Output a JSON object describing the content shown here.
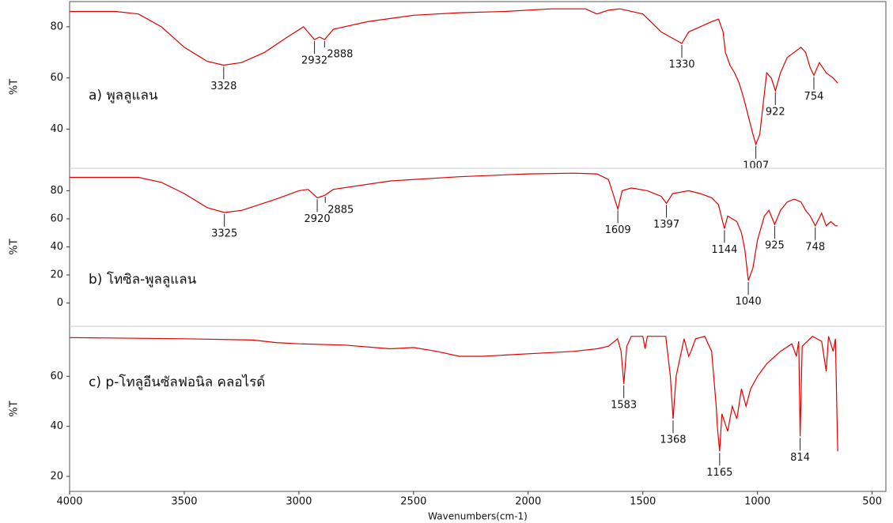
{
  "chart_data": [
    {
      "type": "line",
      "label": "a) พูลลูแลน",
      "ylabel": "%T",
      "color": "#e00000",
      "xlim": [
        4000,
        440
      ],
      "ylim": [
        25,
        88
      ],
      "yticks": [
        40,
        60,
        80
      ],
      "x": [
        4000,
        3800,
        3700,
        3600,
        3500,
        3400,
        3328,
        3250,
        3150,
        3050,
        2980,
        2932,
        2910,
        2888,
        2850,
        2700,
        2500,
        2300,
        2100,
        1900,
        1750,
        1700,
        1650,
        1600,
        1500,
        1420,
        1380,
        1330,
        1300,
        1250,
        1200,
        1170,
        1150,
        1140,
        1120,
        1100,
        1080,
        1060,
        1040,
        1020,
        1007,
        990,
        960,
        940,
        922,
        900,
        870,
        840,
        810,
        790,
        770,
        754,
        730,
        700,
        670,
        650
      ],
      "values": [
        86,
        86,
        85,
        80,
        72,
        66.5,
        65,
        66,
        70,
        76,
        80,
        75,
        76,
        75,
        79,
        82,
        84.5,
        85.5,
        86,
        87,
        87,
        85,
        86.5,
        87,
        85,
        78,
        76,
        73.5,
        78,
        80,
        82,
        83,
        78,
        70,
        65,
        62,
        58,
        52,
        45,
        38,
        34,
        38,
        62,
        60,
        55,
        62,
        68,
        70,
        72,
        70,
        64,
        61,
        66,
        62,
        60,
        58
      ],
      "peaks": [
        3328,
        2932,
        2888,
        1330,
        1007,
        922,
        754
      ]
    },
    {
      "type": "line",
      "label": "b) โทซิล-พูลลูแลน",
      "ylabel": "%T",
      "color": "#e00000",
      "xlim": [
        4000,
        440
      ],
      "ylim": [
        -16,
        96
      ],
      "yticks": [
        0,
        20,
        40,
        60,
        80
      ],
      "x": [
        4000,
        3700,
        3600,
        3500,
        3400,
        3325,
        3250,
        3100,
        3000,
        2960,
        2920,
        2900,
        2885,
        2850,
        2600,
        2300,
        2000,
        1800,
        1700,
        1650,
        1630,
        1609,
        1590,
        1550,
        1480,
        1420,
        1397,
        1370,
        1300,
        1250,
        1200,
        1170,
        1155,
        1144,
        1130,
        1110,
        1090,
        1070,
        1055,
        1040,
        1020,
        1000,
        970,
        950,
        925,
        900,
        870,
        840,
        810,
        790,
        770,
        748,
        720,
        700,
        680,
        660,
        650
      ],
      "values": [
        89.5,
        89.5,
        86,
        78,
        68,
        64.5,
        66,
        74,
        80,
        81,
        75,
        76,
        77,
        81,
        87,
        90,
        92,
        92.5,
        92,
        88,
        78,
        67,
        80,
        82,
        80,
        76,
        71,
        78,
        80,
        78,
        75,
        70,
        60,
        53,
        62,
        60,
        58,
        50,
        38,
        16,
        25,
        45,
        62,
        66,
        56,
        66,
        72,
        74,
        72,
        66,
        62,
        55,
        64,
        55,
        58,
        55,
        55
      ],
      "peaks": [
        3325,
        2920,
        2885,
        1609,
        1397,
        1144,
        1040,
        925,
        748
      ]
    },
    {
      "type": "line",
      "label": "c) p-โทลูอีนซัลฟอนิล คลอไรด์",
      "ylabel": "%T",
      "color": "#e00000",
      "xlabel": "Wavenumbers(cm-1)",
      "xlim": [
        4000,
        440
      ],
      "ylim": [
        14,
        80
      ],
      "yticks": [
        20,
        40,
        60
      ],
      "xticks": [
        4000,
        3500,
        3000,
        2500,
        2000,
        1500,
        1000,
        500
      ],
      "x": [
        4000,
        3500,
        3200,
        3100,
        3000,
        2800,
        2600,
        2500,
        2400,
        2300,
        2200,
        2100,
        2000,
        1900,
        1800,
        1700,
        1650,
        1610,
        1595,
        1583,
        1570,
        1550,
        1500,
        1490,
        1480,
        1400,
        1380,
        1368,
        1355,
        1320,
        1300,
        1290,
        1270,
        1230,
        1200,
        1180,
        1175,
        1165,
        1155,
        1130,
        1110,
        1090,
        1070,
        1050,
        1030,
        1000,
        960,
        900,
        850,
        830,
        820,
        814,
        805,
        760,
        720,
        700,
        690,
        670,
        660,
        650
      ],
      "values": [
        75.5,
        75,
        74.5,
        73.5,
        73,
        72.5,
        71,
        71.5,
        70,
        68,
        68,
        68.5,
        69,
        69.5,
        70,
        71,
        72,
        75,
        70,
        57,
        72,
        76,
        76,
        71,
        76,
        76,
        60,
        43,
        60,
        75,
        68,
        70,
        75,
        76,
        70,
        48,
        40,
        30,
        45,
        38,
        48,
        43,
        55,
        48,
        55,
        60,
        65,
        70,
        73,
        68,
        74,
        36,
        72,
        76,
        74,
        62,
        76,
        70,
        75,
        30
      ],
      "peaks": [
        1583,
        1368,
        1165,
        814
      ]
    }
  ]
}
